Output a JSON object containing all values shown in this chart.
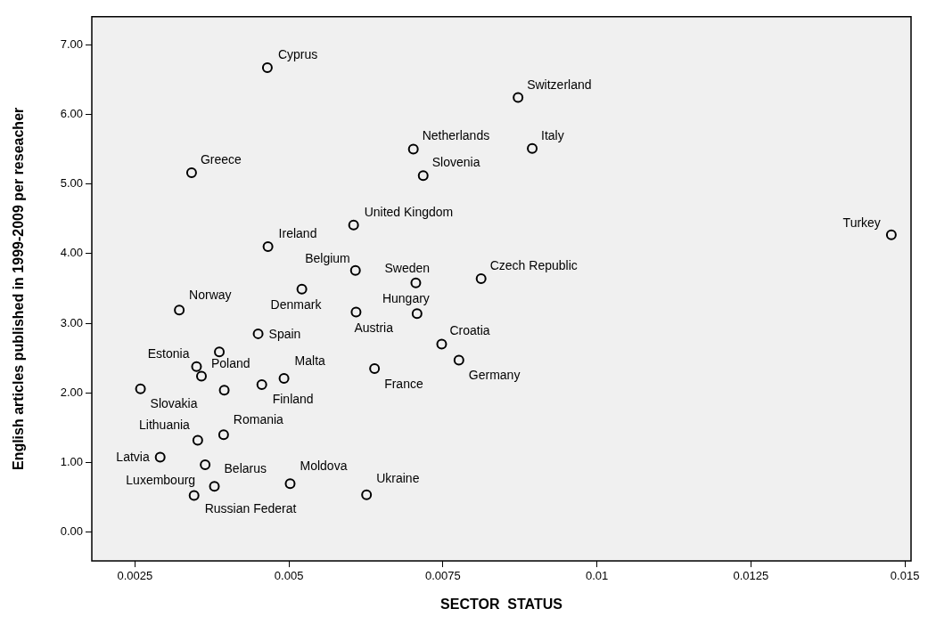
{
  "chart_data": {
    "type": "scatter",
    "xlabel": "SECTOR  STATUS",
    "ylabel": "English articles published in 1999-2009 per reseacher",
    "xlim": [
      0.0018,
      0.0151
    ],
    "ylim": [
      -0.41,
      7.4
    ],
    "xticks": [
      0.0025,
      0.005,
      0.0075,
      0.01,
      0.0125,
      0.015
    ],
    "yticks": [
      {
        "value": 0,
        "label": "0.00"
      },
      {
        "value": 1,
        "label": "1.00"
      },
      {
        "value": 2,
        "label": "2.00"
      },
      {
        "value": 3,
        "label": "3.00"
      },
      {
        "value": 4,
        "label": "4.00"
      },
      {
        "value": 5,
        "label": "5.00"
      },
      {
        "value": 6,
        "label": "6.00"
      },
      {
        "value": 7,
        "label": "7.00"
      }
    ],
    "grid": false,
    "legend": false,
    "marker": "circle",
    "series": [
      {
        "color": "#000000",
        "x": [
          0.00465,
          0.00872,
          0.00342,
          0.00702,
          0.00895,
          0.00718,
          0.00605,
          0.01478,
          0.00466,
          0.00608,
          0.00706,
          0.00812,
          0.00322,
          0.00521,
          0.00708,
          0.00609,
          0.0045,
          0.00748,
          0.0035,
          0.00358,
          0.00492,
          0.00639,
          0.00776,
          0.00259,
          0.00456,
          0.00352,
          0.00394,
          0.00291,
          0.00364,
          0.00379,
          0.00502,
          0.00626,
          0.00346,
          0.00387,
          0.00395
        ],
        "values": [
          6.67,
          6.24,
          5.16,
          5.5,
          5.51,
          5.12,
          4.41,
          4.27,
          4.1,
          3.76,
          3.58,
          3.64,
          3.19,
          3.49,
          3.14,
          3.16,
          2.85,
          2.7,
          2.38,
          2.24,
          2.21,
          2.35,
          2.47,
          2.06,
          2.12,
          1.32,
          1.4,
          1.08,
          0.97,
          0.66,
          0.7,
          0.54,
          0.53,
          2.59,
          2.04
        ]
      }
    ],
    "annotations": [
      {
        "text": "Cyprus",
        "x": 0.00465,
        "y": 6.67
      },
      {
        "text": "Switzerland",
        "x": 0.00872,
        "y": 6.24
      },
      {
        "text": "Greece",
        "x": 0.00342,
        "y": 5.16
      },
      {
        "text": "Netherlands",
        "x": 0.00702,
        "y": 5.5
      },
      {
        "text": "Italy",
        "x": 0.00895,
        "y": 5.51
      },
      {
        "text": "Slovenia",
        "x": 0.00718,
        "y": 5.12
      },
      {
        "text": "United Kingdom",
        "x": 0.00605,
        "y": 4.41
      },
      {
        "text": "Turkey",
        "x": 0.01478,
        "y": 4.27
      },
      {
        "text": "Ireland",
        "x": 0.00466,
        "y": 4.1
      },
      {
        "text": "Belgium",
        "x": 0.00608,
        "y": 3.76
      },
      {
        "text": "Sweden",
        "x": 0.00706,
        "y": 3.58
      },
      {
        "text": "Czech Republic",
        "x": 0.00812,
        "y": 3.64
      },
      {
        "text": "Norway",
        "x": 0.00322,
        "y": 3.19
      },
      {
        "text": "Denmark",
        "x": 0.00521,
        "y": 3.49
      },
      {
        "text": "Hungary",
        "x": 0.00708,
        "y": 3.14
      },
      {
        "text": "Austria",
        "x": 0.00609,
        "y": 3.16
      },
      {
        "text": "Spain",
        "x": 0.0045,
        "y": 2.85
      },
      {
        "text": "Croatia",
        "x": 0.00748,
        "y": 2.7
      },
      {
        "text": "Estonia",
        "x": 0.0035,
        "y": 2.38
      },
      {
        "text": "Poland",
        "x": 0.00358,
        "y": 2.24
      },
      {
        "text": "Malta",
        "x": 0.00492,
        "y": 2.21
      },
      {
        "text": "France",
        "x": 0.00639,
        "y": 2.35
      },
      {
        "text": "Germany",
        "x": 0.00776,
        "y": 2.47
      },
      {
        "text": "Slovakia",
        "x": 0.00259,
        "y": 2.06
      },
      {
        "text": "Finland",
        "x": 0.00456,
        "y": 2.12
      },
      {
        "text": "Lithuania",
        "x": 0.00352,
        "y": 1.32
      },
      {
        "text": "Romania",
        "x": 0.00394,
        "y": 1.4
      },
      {
        "text": "Latvia",
        "x": 0.00291,
        "y": 1.08
      },
      {
        "text": "Luxembourg",
        "x": 0.00364,
        "y": 0.97
      },
      {
        "text": "Belarus",
        "x": 0.00379,
        "y": 0.66
      },
      {
        "text": "Moldova",
        "x": 0.00502,
        "y": 0.7
      },
      {
        "text": "Ukraine",
        "x": 0.00626,
        "y": 0.54
      },
      {
        "text": "Russian Federat",
        "x": 0.00346,
        "y": 0.53
      }
    ]
  }
}
